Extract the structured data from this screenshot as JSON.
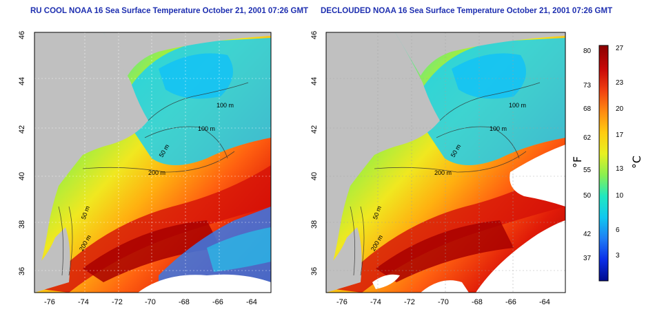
{
  "panels": [
    {
      "id": "left",
      "title": "RU COOL NOAA 16 Sea Surface Temperature October 21, 2001 07:26 GMT",
      "mode": "cloudy"
    },
    {
      "id": "right",
      "title": "DECLOUDED NOAA 16 Sea Surface Temperature October 21, 2001 07:26 GMT",
      "mode": "declouded"
    }
  ],
  "axes": {
    "x_ticks": [
      "-76",
      "-74",
      "-72",
      "-70",
      "-68",
      "-66",
      "-64"
    ],
    "y_ticks": [
      "46",
      "44",
      "42",
      "40",
      "38",
      "36"
    ]
  },
  "contour_labels": [
    "100 m",
    "100 m",
    "50 m",
    "200 m",
    "50 m",
    "200 m"
  ],
  "colorbar": {
    "fahrenheit_ticks": [
      "80",
      "73",
      "68",
      "62",
      "55",
      "50",
      "42",
      "37"
    ],
    "celsius_ticks": [
      "27",
      "23",
      "20",
      "17",
      "13",
      "10",
      "6",
      "3"
    ],
    "fahrenheit_unit": "°F",
    "celsius_unit": "°C",
    "colors": [
      "#000a8c",
      "#0a2ee8",
      "#1e7ef5",
      "#10c8f0",
      "#20e8c0",
      "#8af050",
      "#e8f020",
      "#ffcc10",
      "#ff8a10",
      "#f04010",
      "#c80808",
      "#8a0000"
    ]
  },
  "colors": {
    "land": "#c0c0c0",
    "cloud": "#ffffff",
    "title": "#1e2fb0"
  }
}
